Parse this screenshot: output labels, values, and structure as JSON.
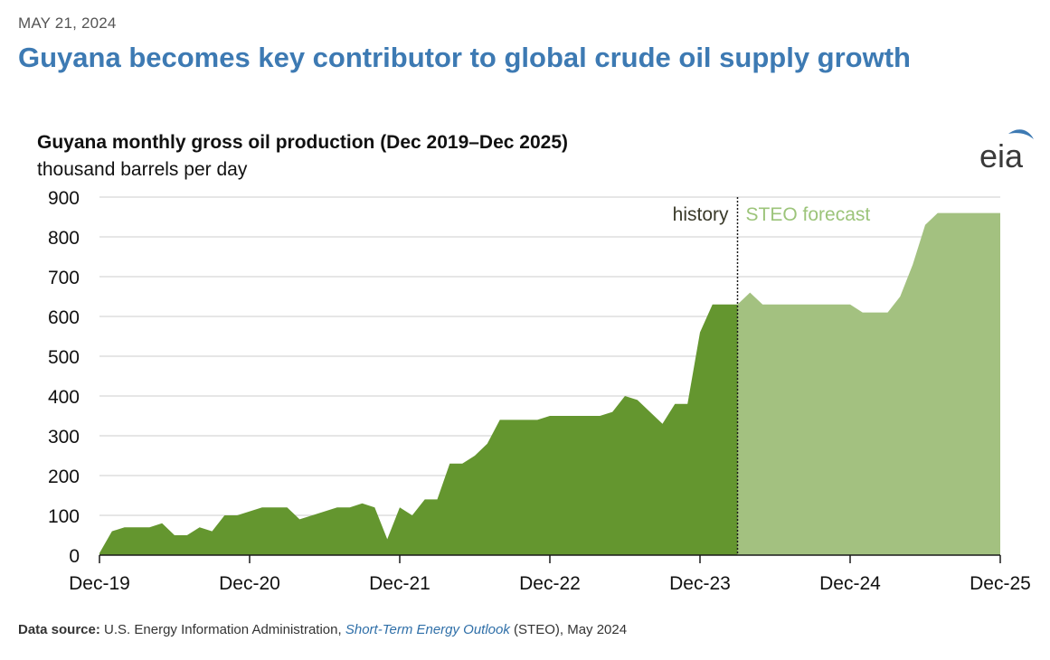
{
  "header": {
    "date": "MAY 21, 2024",
    "headline": "Guyana becomes key contributor to global crude oil supply growth"
  },
  "logo": {
    "text": "eia",
    "icon": "eia-logo",
    "arc_color": "#3d7ab3"
  },
  "source": {
    "label": "Data source:",
    "text_before": "U.S. Energy Information Administration,",
    "link_text": "Short-Term Energy Outlook",
    "text_after": "(STEO), May 2024"
  },
  "chart_data": {
    "type": "area",
    "title": "Guyana monthly gross oil production (Dec 2019–Dec 2025)",
    "subtitle": "thousand barrels per day",
    "ylim": [
      0,
      900
    ],
    "yticks": [
      "0",
      "100",
      "200",
      "300",
      "400",
      "500",
      "600",
      "700",
      "800",
      "900"
    ],
    "x_range": [
      "2019-12",
      "2025-12"
    ],
    "xticks": [
      {
        "label": "Dec-19",
        "date": "2019-12"
      },
      {
        "label": "Dec-20",
        "date": "2020-12"
      },
      {
        "label": "Dec-21",
        "date": "2021-12"
      },
      {
        "label": "Dec-22",
        "date": "2022-12"
      },
      {
        "label": "Dec-23",
        "date": "2023-12"
      },
      {
        "label": "Dec-24",
        "date": "2024-12"
      },
      {
        "label": "Dec-25",
        "date": "2025-12"
      }
    ],
    "grid": true,
    "divider": {
      "date": "2024-03",
      "left_label": "history",
      "right_label": "STEO forecast"
    },
    "colors": {
      "history": "#64962f",
      "forecast": "#a3c180",
      "forecast_label": "#9cc47a",
      "title": "#3d7ab3"
    },
    "series": [
      {
        "name": "history",
        "points": [
          [
            "2019-12",
            5
          ],
          [
            "2020-01",
            60
          ],
          [
            "2020-02",
            70
          ],
          [
            "2020-03",
            70
          ],
          [
            "2020-04",
            70
          ],
          [
            "2020-05",
            80
          ],
          [
            "2020-06",
            50
          ],
          [
            "2020-07",
            50
          ],
          [
            "2020-08",
            70
          ],
          [
            "2020-09",
            60
          ],
          [
            "2020-10",
            100
          ],
          [
            "2020-11",
            100
          ],
          [
            "2020-12",
            110
          ],
          [
            "2021-01",
            120
          ],
          [
            "2021-02",
            120
          ],
          [
            "2021-03",
            120
          ],
          [
            "2021-04",
            90
          ],
          [
            "2021-05",
            100
          ],
          [
            "2021-06",
            110
          ],
          [
            "2021-07",
            120
          ],
          [
            "2021-08",
            120
          ],
          [
            "2021-09",
            130
          ],
          [
            "2021-10",
            120
          ],
          [
            "2021-11",
            40
          ],
          [
            "2021-12",
            120
          ],
          [
            "2022-01",
            100
          ],
          [
            "2022-02",
            140
          ],
          [
            "2022-03",
            140
          ],
          [
            "2022-04",
            230
          ],
          [
            "2022-05",
            230
          ],
          [
            "2022-06",
            250
          ],
          [
            "2022-07",
            280
          ],
          [
            "2022-08",
            340
          ],
          [
            "2022-09",
            340
          ],
          [
            "2022-10",
            340
          ],
          [
            "2022-11",
            340
          ],
          [
            "2022-12",
            350
          ],
          [
            "2023-01",
            350
          ],
          [
            "2023-02",
            350
          ],
          [
            "2023-03",
            350
          ],
          [
            "2023-04",
            350
          ],
          [
            "2023-05",
            360
          ],
          [
            "2023-06",
            400
          ],
          [
            "2023-07",
            390
          ],
          [
            "2023-08",
            360
          ],
          [
            "2023-09",
            330
          ],
          [
            "2023-10",
            380
          ],
          [
            "2023-11",
            380
          ],
          [
            "2023-12",
            560
          ],
          [
            "2024-01",
            630
          ],
          [
            "2024-02",
            630
          ],
          [
            "2024-03",
            630
          ]
        ]
      },
      {
        "name": "STEO forecast",
        "points": [
          [
            "2024-03",
            630
          ],
          [
            "2024-04",
            660
          ],
          [
            "2024-05",
            630
          ],
          [
            "2024-06",
            630
          ],
          [
            "2024-07",
            630
          ],
          [
            "2024-08",
            630
          ],
          [
            "2024-09",
            630
          ],
          [
            "2024-10",
            630
          ],
          [
            "2024-11",
            630
          ],
          [
            "2024-12",
            630
          ],
          [
            "2025-01",
            610
          ],
          [
            "2025-02",
            610
          ],
          [
            "2025-03",
            610
          ],
          [
            "2025-04",
            650
          ],
          [
            "2025-05",
            730
          ],
          [
            "2025-06",
            830
          ],
          [
            "2025-07",
            860
          ],
          [
            "2025-08",
            860
          ],
          [
            "2025-09",
            860
          ],
          [
            "2025-10",
            860
          ],
          [
            "2025-11",
            860
          ],
          [
            "2025-12",
            860
          ]
        ]
      }
    ]
  }
}
